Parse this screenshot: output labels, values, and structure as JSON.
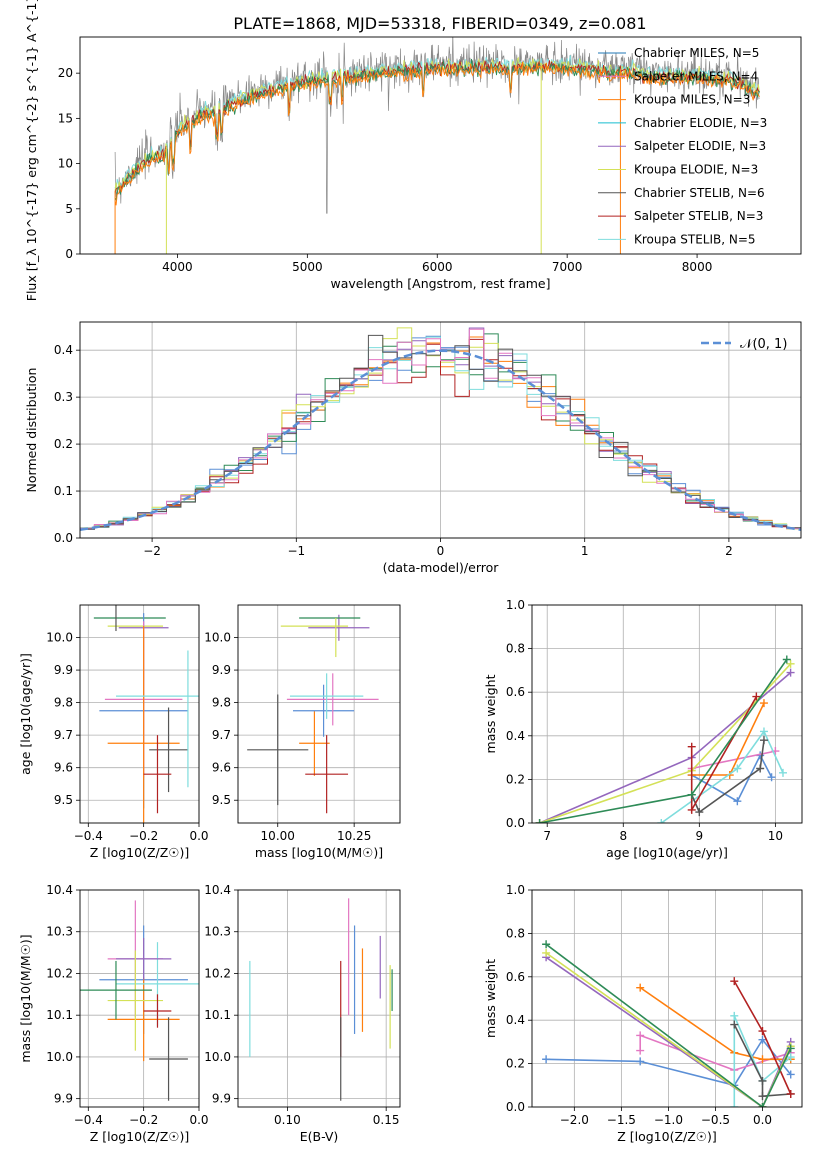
{
  "figure": {
    "title": "PLATE=1868, MJD=53318, FIBERID=0349, z=0.081"
  },
  "chart_data": [
    {
      "id": "spectrum",
      "type": "line",
      "xlabel": "wavelength [Angstrom, rest frame]",
      "ylabel": "Flux [f_λ 10^{-17} erg cm^{-2} s^{-1} A^{-1}]",
      "xlim": [
        3250,
        8800
      ],
      "ylim": [
        0,
        24
      ],
      "xticks": [
        "4000",
        "5000",
        "6000",
        "7000",
        "8000"
      ],
      "yticks": [
        "0",
        "5",
        "10",
        "15",
        "20"
      ],
      "grid": false,
      "legend_position": "right",
      "continuum": {
        "x": [
          3520,
          3600,
          3700,
          3800,
          3900,
          4000,
          4100,
          4200,
          4300,
          4500,
          4700,
          5000,
          5300,
          5600,
          6000,
          6300,
          6600,
          6900,
          7100,
          7300,
          7500,
          7700,
          8000,
          8300,
          8500
        ],
        "y": [
          7,
          8.5,
          10,
          11,
          11.5,
          14,
          15,
          16,
          16,
          17.5,
          18.5,
          19.5,
          20,
          20.5,
          21,
          21,
          21,
          21.2,
          21,
          20.5,
          20.5,
          20,
          20,
          19.5,
          18
        ]
      },
      "series": [
        {
          "name": "Chabrier MILES, N_SSP=5",
          "color": "#1f77b4"
        },
        {
          "name": "Salpeter MILES, N_SSP=4",
          "color": "#e377c2"
        },
        {
          "name": "Kroupa MILES, N_SSP=3",
          "color": "#ff7f0e"
        },
        {
          "name": "Chabrier ELODIE, N_SSP=3",
          "color": "#17becf"
        },
        {
          "name": "Salpeter ELODIE, N_SSP=3",
          "color": "#9467bd"
        },
        {
          "name": "Kroupa ELODIE, N_SSP=3",
          "color": "#d4e157"
        },
        {
          "name": "Chabrier STELIB, N_SSP=6",
          "color": "#555555"
        },
        {
          "name": "Salpeter STELIB, N_SSP=3",
          "color": "#b22222"
        },
        {
          "name": "Kroupa STELIB, N_SSP=5",
          "color": "#7fdddd"
        }
      ]
    },
    {
      "id": "residuals",
      "type": "line",
      "xlabel": "(data-model)/error",
      "ylabel": "Normed distribution",
      "xlim": [
        -2.5,
        2.5
      ],
      "ylim": [
        0,
        0.46
      ],
      "xticks": [
        "−2",
        "−1",
        "0",
        "1",
        "2"
      ],
      "yticks": [
        "0.0",
        "0.1",
        "0.2",
        "0.3",
        "0.4"
      ],
      "grid": true,
      "legend": "𝒩(0, 1)",
      "legend_position": "top-right",
      "gaussian": {
        "mean": 0,
        "sigma": 1,
        "color": "#5b8fd6"
      },
      "histogram_colors": [
        "#5b8fd6",
        "#ff7f0e",
        "#2e8b57",
        "#9467bd",
        "#d4e157",
        "#b22222",
        "#7fdddd",
        "#e377c2",
        "#555555"
      ]
    },
    {
      "id": "age-vs-Z",
      "type": "scatter",
      "xlabel": "Z [log10(Z/Z☉)]",
      "ylabel": "age [log10(age/yr)]",
      "xlim": [
        -0.43,
        0.0
      ],
      "ylim": [
        9.43,
        10.1
      ],
      "xticks": [
        "−0.4",
        "−0.2",
        "0.0"
      ],
      "yticks": [
        "9.5",
        "9.6",
        "9.7",
        "9.8",
        "9.9",
        "10.0"
      ],
      "grid": true,
      "points": [
        {
          "x": -0.25,
          "y": 10.06,
          "xerr": 0.13,
          "yerr": 0.0,
          "color": "#2e8b57"
        },
        {
          "x": -0.23,
          "y": 10.035,
          "xerr": 0.1,
          "yerr": 0.0,
          "color": "#d4e157"
        },
        {
          "x": -0.2,
          "y": 10.03,
          "xerr": 0.09,
          "yerr": 0.0,
          "color": "#9467bd"
        },
        {
          "x": -0.2,
          "y": 9.775,
          "xerr": 0.16,
          "yerr": 0.3,
          "color": "#5b8fd6"
        },
        {
          "x": -0.2,
          "y": 9.81,
          "xerr": 0.14,
          "yerr": 0.24,
          "color": "#e377c2"
        },
        {
          "x": -0.2,
          "y": 9.675,
          "xerr": 0.13,
          "yerr": 0.36,
          "color": "#ff7f0e"
        },
        {
          "x": -0.15,
          "y": 9.82,
          "xerr": 0.15,
          "yerr": 0.0,
          "color": "#7fdddd"
        },
        {
          "x": -0.11,
          "y": 9.655,
          "xerr": 0.07,
          "yerr": 0.13,
          "color": "#555555"
        },
        {
          "x": -0.15,
          "y": 9.58,
          "xerr": 0.05,
          "yerr": 0.12,
          "color": "#b22222"
        },
        {
          "x": -0.3,
          "y": 10.06,
          "xerr": 0.0,
          "yerr": 0.04,
          "color": "#555555"
        },
        {
          "x": -0.04,
          "y": 9.75,
          "xerr": 0.0,
          "yerr": 0.21,
          "color": "#7fdddd"
        }
      ]
    },
    {
      "id": "age-vs-mass",
      "type": "scatter",
      "xlabel": "mass [log10(M/M☉)]",
      "ylabel": "",
      "xlim": [
        9.87,
        10.4
      ],
      "ylim": [
        9.43,
        10.1
      ],
      "xticks": [
        "10.00",
        "10.25"
      ],
      "yticks": [
        "9.5",
        "9.6",
        "9.7",
        "9.8",
        "9.9",
        "10.0"
      ],
      "grid": true,
      "points": [
        {
          "x": 10.0,
          "y": 9.655,
          "xerr": 0.1,
          "yerr": 0.17,
          "color": "#555555"
        },
        {
          "x": 10.12,
          "y": 9.675,
          "xerr": 0.05,
          "yerr": 0.1,
          "color": "#ff7f0e"
        },
        {
          "x": 10.15,
          "y": 9.775,
          "xerr": 0.1,
          "yerr": 0.08,
          "color": "#5b8fd6"
        },
        {
          "x": 10.18,
          "y": 9.81,
          "xerr": 0.15,
          "yerr": 0.08,
          "color": "#e377c2"
        },
        {
          "x": 10.16,
          "y": 9.82,
          "xerr": 0.12,
          "yerr": 0.07,
          "color": "#7fdddd"
        },
        {
          "x": 10.16,
          "y": 9.58,
          "xerr": 0.07,
          "yerr": 0.12,
          "color": "#b22222"
        },
        {
          "x": 10.2,
          "y": 10.03,
          "xerr": 0.1,
          "yerr": 0.04,
          "color": "#9467bd"
        },
        {
          "x": 10.12,
          "y": 10.035,
          "xerr": 0.11,
          "yerr": 0.0,
          "color": "#d4e157"
        },
        {
          "x": 10.17,
          "y": 10.06,
          "xerr": 0.1,
          "yerr": 0.0,
          "color": "#2e8b57"
        },
        {
          "x": 10.19,
          "y": 10.0,
          "xerr": 0.0,
          "yerr": 0.06,
          "color": "#d4e157"
        }
      ]
    },
    {
      "id": "mass-weight-vs-age",
      "type": "line",
      "xlabel": "age [log10(age/yr)]",
      "ylabel": "mass weight",
      "xlim": [
        6.8,
        10.35
      ],
      "ylim": [
        0,
        1
      ],
      "xticks": [
        "7",
        "8",
        "9",
        "10"
      ],
      "yticks": [
        "0.0",
        "0.2",
        "0.4",
        "0.6",
        "0.8",
        "1.0"
      ],
      "grid": true,
      "series": [
        {
          "color": "#5b8fd6",
          "x": [
            8.9,
            9.5,
            9.8,
            9.95
          ],
          "y": [
            0.22,
            0.1,
            0.31,
            0.21
          ]
        },
        {
          "color": "#e377c2",
          "x": [
            8.9,
            10.0
          ],
          "y": [
            0.25,
            0.33
          ]
        },
        {
          "color": "#ff7f0e",
          "x": [
            8.9,
            9.4,
            9.85
          ],
          "y": [
            0.22,
            0.22,
            0.55
          ]
        },
        {
          "color": "#7fdddd",
          "x": [
            8.5,
            9.5,
            9.85,
            10.1
          ],
          "y": [
            0.0,
            0.25,
            0.42,
            0.23
          ]
        },
        {
          "color": "#9467bd",
          "x": [
            6.9,
            8.9,
            10.2
          ],
          "y": [
            0.0,
            0.3,
            0.69
          ]
        },
        {
          "color": "#d4e157",
          "x": [
            6.9,
            8.9,
            10.2
          ],
          "y": [
            0.0,
            0.24,
            0.73
          ]
        },
        {
          "color": "#555555",
          "x": [
            8.9,
            9.0,
            9.8,
            9.85
          ],
          "y": [
            0.13,
            0.05,
            0.25,
            0.38
          ]
        },
        {
          "color": "#b22222",
          "x": [
            8.9,
            8.9,
            9.75
          ],
          "y": [
            0.35,
            0.06,
            0.58
          ]
        },
        {
          "color": "#2e8b57",
          "x": [
            6.9,
            8.9,
            10.15
          ],
          "y": [
            0.0,
            0.13,
            0.75
          ]
        }
      ]
    },
    {
      "id": "mass-vs-Z",
      "type": "scatter",
      "xlabel": "Z [log10(Z/Z☉)]",
      "ylabel": "mass [log10(M/M☉)]",
      "xlim": [
        -0.43,
        0.0
      ],
      "ylim": [
        9.88,
        10.4
      ],
      "xticks": [
        "−0.4",
        "−0.2",
        "0.0"
      ],
      "yticks": [
        "9.9",
        "10.0",
        "10.1",
        "10.2",
        "10.3",
        "10.4"
      ],
      "grid": true,
      "points": [
        {
          "x": -0.2,
          "y": 10.185,
          "xerr": 0.16,
          "yerr": 0.13,
          "color": "#5b8fd6"
        },
        {
          "x": -0.23,
          "y": 10.235,
          "xerr": 0.1,
          "yerr": 0.14,
          "color": "#e377c2"
        },
        {
          "x": -0.2,
          "y": 10.09,
          "xerr": 0.13,
          "yerr": 0.1,
          "color": "#ff7f0e"
        },
        {
          "x": -0.15,
          "y": 10.175,
          "xerr": 0.15,
          "yerr": 0.1,
          "color": "#7fdddd"
        },
        {
          "x": -0.2,
          "y": 10.235,
          "xerr": 0.1,
          "yerr": 0.05,
          "color": "#9467bd"
        },
        {
          "x": -0.23,
          "y": 10.135,
          "xerr": 0.1,
          "yerr": 0.12,
          "color": "#d4e157"
        },
        {
          "x": -0.3,
          "y": 10.16,
          "xerr": 0.13,
          "yerr": 0.07,
          "color": "#2e8b57"
        },
        {
          "x": -0.11,
          "y": 9.995,
          "xerr": 0.07,
          "yerr": 0.1,
          "color": "#555555"
        },
        {
          "x": -0.15,
          "y": 10.11,
          "xerr": 0.05,
          "yerr": 0.04,
          "color": "#b22222"
        }
      ]
    },
    {
      "id": "mass-vs-ebv",
      "type": "scatter",
      "xlabel": "E(B-V)",
      "ylabel": "",
      "xlim": [
        0.075,
        0.157
      ],
      "ylim": [
        9.88,
        10.4
      ],
      "xticks": [
        "0.10",
        "0.15"
      ],
      "yticks": [
        "9.9",
        "10.0",
        "10.1",
        "10.2",
        "10.3",
        "10.4"
      ],
      "grid": true,
      "points": [
        {
          "x": 0.081,
          "y": 10.115,
          "xerr": 0,
          "yerr": 0.115,
          "color": "#7fdddd"
        },
        {
          "x": 0.127,
          "y": 10.115,
          "xerr": 0,
          "yerr": 0.115,
          "color": "#b22222"
        },
        {
          "x": 0.127,
          "y": 9.995,
          "xerr": 0,
          "yerr": 0.1,
          "color": "#555555"
        },
        {
          "x": 0.131,
          "y": 10.24,
          "xerr": 0,
          "yerr": 0.14,
          "color": "#e377c2"
        },
        {
          "x": 0.134,
          "y": 10.185,
          "xerr": 0,
          "yerr": 0.13,
          "color": "#5b8fd6"
        },
        {
          "x": 0.138,
          "y": 10.16,
          "xerr": 0,
          "yerr": 0.1,
          "color": "#ff7f0e"
        },
        {
          "x": 0.147,
          "y": 10.215,
          "xerr": 0,
          "yerr": 0.075,
          "color": "#9467bd"
        },
        {
          "x": 0.152,
          "y": 10.12,
          "xerr": 0,
          "yerr": 0.1,
          "color": "#d4e157"
        },
        {
          "x": 0.153,
          "y": 10.16,
          "xerr": 0,
          "yerr": 0.05,
          "color": "#2e8b57"
        }
      ]
    },
    {
      "id": "mass-weight-vs-Z",
      "type": "line",
      "xlabel": "Z [log10(Z/Z☉)]",
      "ylabel": "mass weight",
      "xlim": [
        -2.45,
        0.42
      ],
      "ylim": [
        0,
        1
      ],
      "xticks": [
        "−2.0",
        "−1.5",
        "−1.0",
        "−0.5",
        "0.0"
      ],
      "yticks": [
        "0.0",
        "0.2",
        "0.4",
        "0.6",
        "0.8",
        "1.0"
      ],
      "grid": true,
      "series": [
        {
          "color": "#5b8fd6",
          "x": [
            -2.3,
            -1.3,
            -0.3,
            0.0,
            0.3
          ],
          "y": [
            0.22,
            0.21,
            0.1,
            0.31,
            0.15
          ]
        },
        {
          "color": "#e377c2",
          "x": [
            -1.3,
            -1.3,
            -0.3,
            0.3
          ],
          "y": [
            0.26,
            0.33,
            0.17,
            0.25
          ]
        },
        {
          "color": "#ff7f0e",
          "x": [
            -1.3,
            -0.3,
            0.0,
            0.3
          ],
          "y": [
            0.55,
            0.25,
            0.22,
            0.22
          ]
        },
        {
          "color": "#7fdddd",
          "x": [
            -0.3,
            -0.3,
            0.0,
            0.3
          ],
          "y": [
            0.0,
            0.42,
            0.12,
            0.23
          ]
        },
        {
          "color": "#9467bd",
          "x": [
            -2.3,
            0.0,
            0.3
          ],
          "y": [
            0.69,
            0.0,
            0.3
          ]
        },
        {
          "color": "#d4e157",
          "x": [
            -2.3,
            0.0,
            0.3
          ],
          "y": [
            0.71,
            0.0,
            0.28
          ]
        },
        {
          "color": "#555555",
          "x": [
            -0.3,
            0.0,
            0.0,
            0.3
          ],
          "y": [
            0.38,
            0.12,
            0.05,
            0.06
          ]
        },
        {
          "color": "#b22222",
          "x": [
            -0.3,
            0.0,
            0.3
          ],
          "y": [
            0.58,
            0.35,
            0.06
          ]
        },
        {
          "color": "#2e8b57",
          "x": [
            -2.3,
            0.0,
            0.3
          ],
          "y": [
            0.75,
            0.0,
            0.27
          ]
        }
      ]
    }
  ]
}
